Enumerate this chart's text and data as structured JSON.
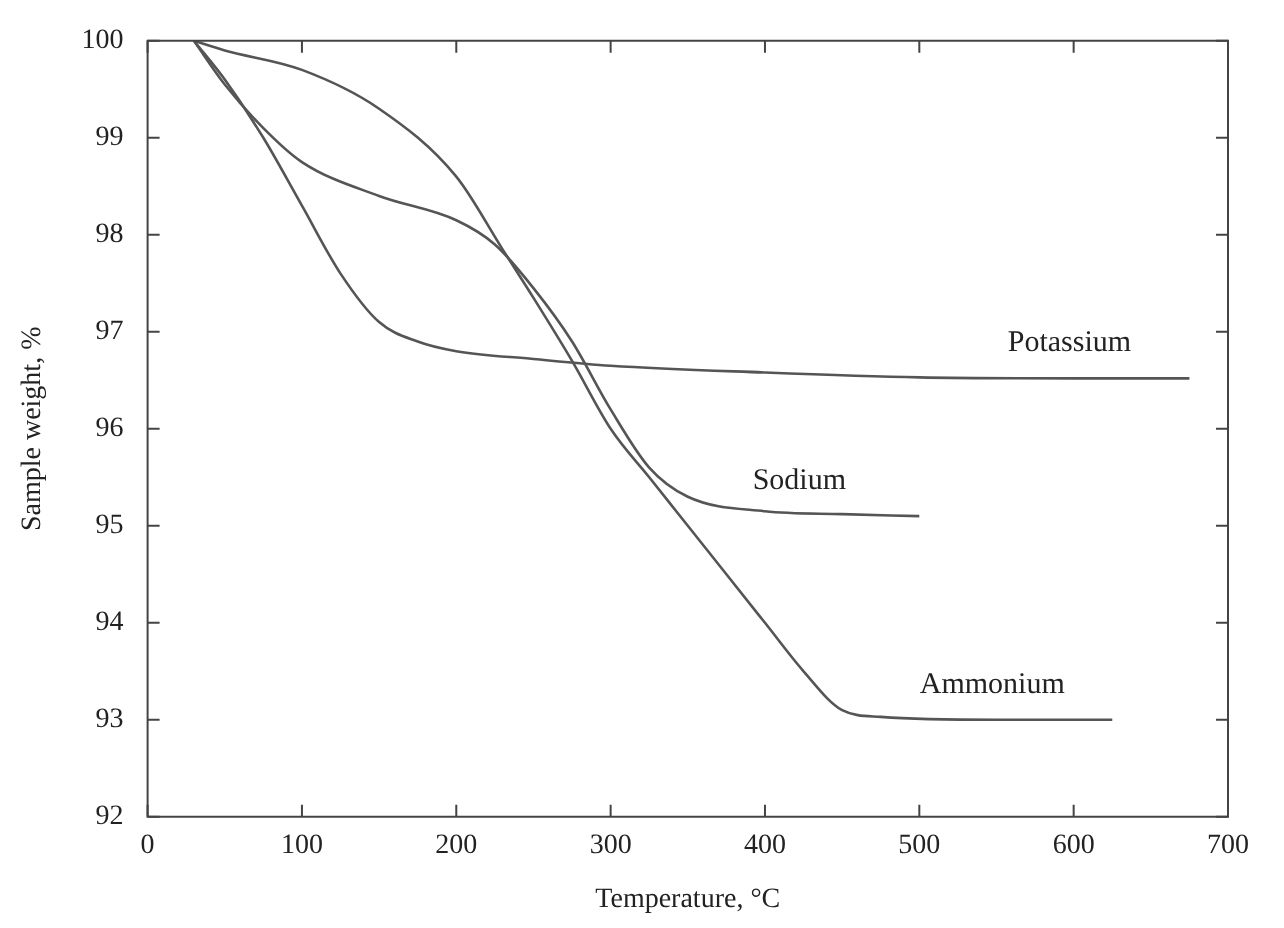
{
  "chart_data": {
    "type": "line",
    "xlabel": "Temperature, °C",
    "ylabel": "Sample weight, %",
    "xlim": [
      0,
      700
    ],
    "xticks": [
      0,
      100,
      200,
      300,
      400,
      500,
      600,
      700
    ],
    "ylim": [
      92,
      100
    ],
    "yticks": [
      92,
      93,
      94,
      95,
      96,
      97,
      98,
      99,
      100
    ],
    "grid": false,
    "legend": false,
    "marker": "none",
    "line_style": "solid",
    "series": [
      {
        "name": "Potassium",
        "color": "#555555",
        "x": [
          30,
          50,
          75,
          100,
          125,
          150,
          175,
          200,
          250,
          300,
          400,
          500,
          600,
          675
        ],
        "values": [
          100,
          99.6,
          99.0,
          98.3,
          97.6,
          97.1,
          96.9,
          96.8,
          96.72,
          96.65,
          96.58,
          96.53,
          96.52,
          96.52
        ]
      },
      {
        "name": "Sodium",
        "color": "#555555",
        "x": [
          30,
          50,
          75,
          100,
          150,
          200,
          225,
          250,
          275,
          300,
          325,
          350,
          400,
          450,
          500
        ],
        "values": [
          100,
          99.55,
          99.1,
          98.75,
          98.4,
          98.15,
          97.9,
          97.45,
          96.9,
          96.2,
          95.6,
          95.3,
          95.15,
          95.12,
          95.1
        ]
      },
      {
        "name": "Ammonium",
        "color": "#555555",
        "x": [
          30,
          50,
          100,
          150,
          200,
          230,
          250,
          275,
          300,
          325,
          350,
          375,
          400,
          425,
          450,
          475,
          550,
          625
        ],
        "values": [
          100,
          99.9,
          99.7,
          99.3,
          98.6,
          97.85,
          97.35,
          96.7,
          96.0,
          95.5,
          95.0,
          94.5,
          94.0,
          93.5,
          93.1,
          93.03,
          93.0,
          93.0
        ]
      }
    ]
  }
}
